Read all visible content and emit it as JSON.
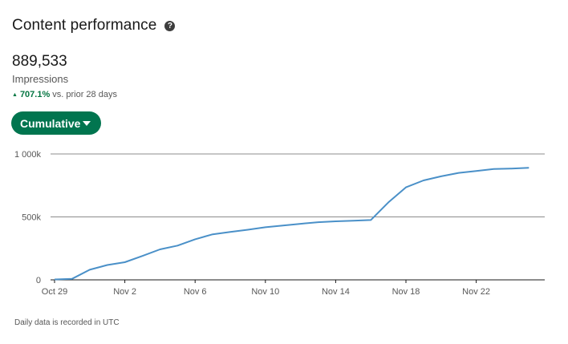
{
  "header": {
    "title": "Content performance",
    "help_icon": "question-circle-icon"
  },
  "metric": {
    "value": "889,533",
    "label": "Impressions",
    "change_pct": "707.1%",
    "change_suffix": "vs. prior 28 days",
    "change_direction": "up",
    "change_color": "#057642"
  },
  "controls": {
    "view_label": "Cumulative",
    "view_color": "#01754f"
  },
  "footnote": "Daily data is recorded in UTC",
  "chart_data": {
    "type": "line",
    "title": "",
    "xlabel": "",
    "ylabel": "",
    "x_ticks": [
      "Oct 29",
      "Nov 2",
      "Nov 6",
      "Nov 10",
      "Nov 14",
      "Nov 18",
      "Nov 22"
    ],
    "y_ticks": [
      "0",
      "500k",
      "1 000k"
    ],
    "ylim": [
      0,
      1000000
    ],
    "grid": "horizontal",
    "series": [
      {
        "color": "#4a90c8",
        "points": [
          [
            "Oct 29",
            3000
          ],
          [
            "Oct 30",
            8000
          ],
          [
            "Oct 31",
            80000
          ],
          [
            "Nov 1",
            118000
          ],
          [
            "Nov 2",
            140000
          ],
          [
            "Nov 3",
            190000
          ],
          [
            "Nov 4",
            242000
          ],
          [
            "Nov 5",
            272000
          ],
          [
            "Nov 6",
            322000
          ],
          [
            "Nov 7",
            362000
          ],
          [
            "Nov 8",
            380000
          ],
          [
            "Nov 9",
            398000
          ],
          [
            "Nov 10",
            418000
          ],
          [
            "Nov 11",
            432000
          ],
          [
            "Nov 12",
            445000
          ],
          [
            "Nov 13",
            458000
          ],
          [
            "Nov 14",
            465000
          ],
          [
            "Nov 15",
            470000
          ],
          [
            "Nov 16",
            475000
          ],
          [
            "Nov 17",
            615000
          ],
          [
            "Nov 18",
            735000
          ],
          [
            "Nov 19",
            790000
          ],
          [
            "Nov 20",
            822000
          ],
          [
            "Nov 21",
            850000
          ],
          [
            "Nov 22",
            865000
          ],
          [
            "Nov 23",
            880000
          ],
          [
            "Nov 24",
            884000
          ],
          [
            "Nov 25",
            889533
          ]
        ]
      }
    ]
  }
}
